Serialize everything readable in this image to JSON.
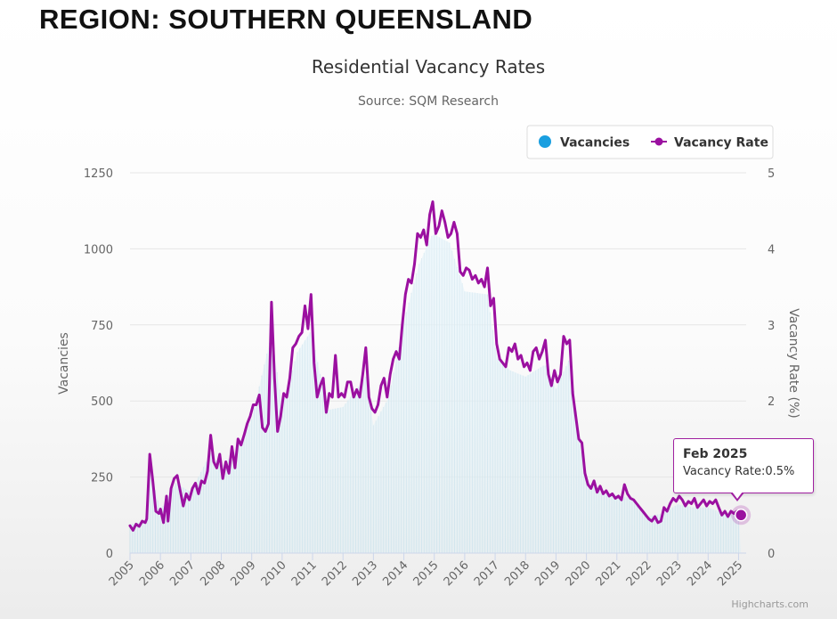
{
  "page": {
    "heading": "REGION: SOUTHERN QUEENSLAND",
    "credit": "Highcharts.com"
  },
  "tooltip": {
    "title": "Feb 2025",
    "label": "Vacancy Rate:",
    "value": "0.5%"
  },
  "colors": {
    "vacancies": "#1a9fe0",
    "vacancy_rate": "#9b10a0",
    "grid": "#e6e6e6",
    "axis_text": "#666666"
  },
  "chart_data": {
    "type": "line",
    "title": "Residential Vacancy Rates",
    "subtitle": "Source: SQM Research",
    "ylabel_left": "Vacancies",
    "ylabel_right": "Vacancy Rate (%)",
    "ylim_left": [
      0,
      1250
    ],
    "ylim_right": [
      0,
      5
    ],
    "yticks_left": [
      "0",
      "250",
      "500",
      "750",
      "1000",
      "1250"
    ],
    "yticks_right": [
      "0",
      "1",
      "2",
      "3",
      "4",
      "5"
    ],
    "x_ticks": [
      "2005",
      "2006",
      "2007",
      "2008",
      "2009",
      "2010",
      "2011",
      "2012",
      "2013",
      "2014",
      "2015",
      "2016",
      "2017",
      "2018",
      "2019",
      "2020",
      "2021",
      "2022",
      "2023",
      "2024",
      "2025"
    ],
    "xlim": [
      2005,
      2025.25
    ],
    "legend": {
      "position": "top-right",
      "entries": [
        {
          "name": "Vacancies",
          "marker": "circle"
        },
        {
          "name": "Vacancy Rate",
          "marker": "line-dot"
        }
      ]
    },
    "grid": true,
    "series": [
      {
        "name": "Vacancy Rate",
        "axis": "right",
        "points": [
          [
            2005.0,
            0.36
          ],
          [
            2005.1,
            0.3
          ],
          [
            2005.2,
            0.38
          ],
          [
            2005.3,
            0.35
          ],
          [
            2005.4,
            0.42
          ],
          [
            2005.5,
            0.4
          ],
          [
            2005.55,
            0.45
          ],
          [
            2005.65,
            1.3
          ],
          [
            2005.75,
            0.95
          ],
          [
            2005.85,
            0.55
          ],
          [
            2005.95,
            0.52
          ],
          [
            2006.0,
            0.58
          ],
          [
            2006.1,
            0.4
          ],
          [
            2006.2,
            0.75
          ],
          [
            2006.25,
            0.42
          ],
          [
            2006.35,
            0.85
          ],
          [
            2006.45,
            0.98
          ],
          [
            2006.55,
            1.02
          ],
          [
            2006.65,
            0.82
          ],
          [
            2006.75,
            0.62
          ],
          [
            2006.85,
            0.78
          ],
          [
            2006.95,
            0.7
          ],
          [
            2007.05,
            0.85
          ],
          [
            2007.15,
            0.92
          ],
          [
            2007.25,
            0.78
          ],
          [
            2007.35,
            0.95
          ],
          [
            2007.45,
            0.92
          ],
          [
            2007.55,
            1.08
          ],
          [
            2007.65,
            1.55
          ],
          [
            2007.75,
            1.2
          ],
          [
            2007.85,
            1.12
          ],
          [
            2007.95,
            1.3
          ],
          [
            2008.05,
            0.98
          ],
          [
            2008.15,
            1.2
          ],
          [
            2008.25,
            1.05
          ],
          [
            2008.35,
            1.4
          ],
          [
            2008.45,
            1.12
          ],
          [
            2008.55,
            1.5
          ],
          [
            2008.65,
            1.42
          ],
          [
            2008.75,
            1.55
          ],
          [
            2008.85,
            1.7
          ],
          [
            2008.95,
            1.8
          ],
          [
            2009.05,
            1.95
          ],
          [
            2009.15,
            1.95
          ],
          [
            2009.25,
            2.08
          ],
          [
            2009.35,
            1.65
          ],
          [
            2009.45,
            1.6
          ],
          [
            2009.55,
            1.7
          ],
          [
            2009.65,
            3.3
          ],
          [
            2009.75,
            2.3
          ],
          [
            2009.85,
            1.6
          ],
          [
            2009.95,
            1.8
          ],
          [
            2010.05,
            2.1
          ],
          [
            2010.15,
            2.05
          ],
          [
            2010.25,
            2.3
          ],
          [
            2010.35,
            2.7
          ],
          [
            2010.45,
            2.75
          ],
          [
            2010.55,
            2.85
          ],
          [
            2010.65,
            2.9
          ],
          [
            2010.75,
            3.25
          ],
          [
            2010.85,
            2.95
          ],
          [
            2010.95,
            3.4
          ],
          [
            2011.05,
            2.5
          ],
          [
            2011.15,
            2.05
          ],
          [
            2011.25,
            2.2
          ],
          [
            2011.35,
            2.3
          ],
          [
            2011.45,
            1.85
          ],
          [
            2011.55,
            2.1
          ],
          [
            2011.65,
            2.05
          ],
          [
            2011.75,
            2.6
          ],
          [
            2011.85,
            2.05
          ],
          [
            2011.95,
            2.1
          ],
          [
            2012.05,
            2.05
          ],
          [
            2012.15,
            2.25
          ],
          [
            2012.25,
            2.25
          ],
          [
            2012.35,
            2.05
          ],
          [
            2012.45,
            2.15
          ],
          [
            2012.55,
            2.05
          ],
          [
            2012.65,
            2.35
          ],
          [
            2012.75,
            2.7
          ],
          [
            2012.85,
            2.05
          ],
          [
            2012.95,
            1.9
          ],
          [
            2013.05,
            1.85
          ],
          [
            2013.15,
            1.95
          ],
          [
            2013.25,
            2.2
          ],
          [
            2013.35,
            2.3
          ],
          [
            2013.45,
            2.05
          ],
          [
            2013.55,
            2.35
          ],
          [
            2013.65,
            2.55
          ],
          [
            2013.75,
            2.65
          ],
          [
            2013.85,
            2.55
          ],
          [
            2013.95,
            3.0
          ],
          [
            2014.05,
            3.4
          ],
          [
            2014.15,
            3.6
          ],
          [
            2014.25,
            3.55
          ],
          [
            2014.35,
            3.8
          ],
          [
            2014.45,
            4.2
          ],
          [
            2014.55,
            4.15
          ],
          [
            2014.65,
            4.25
          ],
          [
            2014.75,
            4.05
          ],
          [
            2014.85,
            4.45
          ],
          [
            2014.95,
            4.62
          ],
          [
            2015.05,
            4.2
          ],
          [
            2015.15,
            4.3
          ],
          [
            2015.25,
            4.5
          ],
          [
            2015.35,
            4.35
          ],
          [
            2015.45,
            4.15
          ],
          [
            2015.55,
            4.2
          ],
          [
            2015.65,
            4.35
          ],
          [
            2015.75,
            4.2
          ],
          [
            2015.85,
            3.7
          ],
          [
            2015.95,
            3.65
          ],
          [
            2016.05,
            3.75
          ],
          [
            2016.15,
            3.72
          ],
          [
            2016.25,
            3.6
          ],
          [
            2016.35,
            3.65
          ],
          [
            2016.45,
            3.55
          ],
          [
            2016.55,
            3.6
          ],
          [
            2016.65,
            3.5
          ],
          [
            2016.75,
            3.75
          ],
          [
            2016.85,
            3.25
          ],
          [
            2016.95,
            3.35
          ],
          [
            2017.05,
            2.75
          ],
          [
            2017.15,
            2.55
          ],
          [
            2017.25,
            2.5
          ],
          [
            2017.35,
            2.45
          ],
          [
            2017.45,
            2.7
          ],
          [
            2017.55,
            2.65
          ],
          [
            2017.65,
            2.75
          ],
          [
            2017.75,
            2.55
          ],
          [
            2017.85,
            2.6
          ],
          [
            2017.95,
            2.45
          ],
          [
            2018.05,
            2.5
          ],
          [
            2018.15,
            2.4
          ],
          [
            2018.25,
            2.65
          ],
          [
            2018.35,
            2.7
          ],
          [
            2018.45,
            2.55
          ],
          [
            2018.55,
            2.65
          ],
          [
            2018.65,
            2.8
          ],
          [
            2018.75,
            2.35
          ],
          [
            2018.85,
            2.2
          ],
          [
            2018.95,
            2.4
          ],
          [
            2019.05,
            2.25
          ],
          [
            2019.15,
            2.35
          ],
          [
            2019.25,
            2.85
          ],
          [
            2019.35,
            2.75
          ],
          [
            2019.45,
            2.8
          ],
          [
            2019.55,
            2.1
          ],
          [
            2019.65,
            1.8
          ],
          [
            2019.75,
            1.5
          ],
          [
            2019.85,
            1.45
          ],
          [
            2019.95,
            1.05
          ],
          [
            2020.05,
            0.9
          ],
          [
            2020.15,
            0.85
          ],
          [
            2020.25,
            0.95
          ],
          [
            2020.35,
            0.8
          ],
          [
            2020.45,
            0.88
          ],
          [
            2020.55,
            0.78
          ],
          [
            2020.65,
            0.82
          ],
          [
            2020.75,
            0.75
          ],
          [
            2020.85,
            0.78
          ],
          [
            2020.95,
            0.72
          ],
          [
            2021.05,
            0.75
          ],
          [
            2021.15,
            0.7
          ],
          [
            2021.25,
            0.9
          ],
          [
            2021.35,
            0.78
          ],
          [
            2021.45,
            0.72
          ],
          [
            2021.55,
            0.7
          ],
          [
            2021.65,
            0.65
          ],
          [
            2021.75,
            0.6
          ],
          [
            2021.85,
            0.55
          ],
          [
            2021.95,
            0.5
          ],
          [
            2022.05,
            0.45
          ],
          [
            2022.15,
            0.42
          ],
          [
            2022.25,
            0.48
          ],
          [
            2022.35,
            0.4
          ],
          [
            2022.45,
            0.42
          ],
          [
            2022.55,
            0.6
          ],
          [
            2022.65,
            0.55
          ],
          [
            2022.75,
            0.65
          ],
          [
            2022.85,
            0.72
          ],
          [
            2022.95,
            0.68
          ],
          [
            2023.05,
            0.75
          ],
          [
            2023.15,
            0.7
          ],
          [
            2023.25,
            0.62
          ],
          [
            2023.35,
            0.68
          ],
          [
            2023.45,
            0.65
          ],
          [
            2023.55,
            0.72
          ],
          [
            2023.65,
            0.6
          ],
          [
            2023.75,
            0.65
          ],
          [
            2023.85,
            0.7
          ],
          [
            2023.95,
            0.62
          ],
          [
            2024.05,
            0.68
          ],
          [
            2024.15,
            0.65
          ],
          [
            2024.25,
            0.7
          ],
          [
            2024.35,
            0.6
          ],
          [
            2024.45,
            0.5
          ],
          [
            2024.55,
            0.55
          ],
          [
            2024.65,
            0.48
          ],
          [
            2024.75,
            0.55
          ],
          [
            2024.85,
            0.52
          ],
          [
            2024.95,
            0.55
          ],
          [
            2025.08,
            0.53
          ]
        ]
      },
      {
        "name": "Vacancies",
        "axis": "left",
        "note_values_follow_rate_shape": true,
        "points": [
          [
            2005.0,
            95
          ],
          [
            2005.5,
            105
          ],
          [
            2005.65,
            280
          ],
          [
            2006.0,
            140
          ],
          [
            2006.5,
            230
          ],
          [
            2007.0,
            200
          ],
          [
            2007.65,
            330
          ],
          [
            2008.0,
            280
          ],
          [
            2008.5,
            340
          ],
          [
            2009.0,
            440
          ],
          [
            2009.65,
            720
          ],
          [
            2010.0,
            480
          ],
          [
            2010.5,
            660
          ],
          [
            2010.95,
            730
          ],
          [
            2011.5,
            470
          ],
          [
            2012.0,
            480
          ],
          [
            2012.75,
            580
          ],
          [
            2013.0,
            420
          ],
          [
            2013.5,
            510
          ],
          [
            2014.0,
            760
          ],
          [
            2014.5,
            950
          ],
          [
            2014.95,
            1050
          ],
          [
            2015.5,
            1020
          ],
          [
            2016.0,
            860
          ],
          [
            2016.75,
            850
          ],
          [
            2017.05,
            640
          ],
          [
            2017.5,
            600
          ],
          [
            2018.0,
            580
          ],
          [
            2018.65,
            620
          ],
          [
            2019.0,
            540
          ],
          [
            2019.45,
            640
          ],
          [
            2019.95,
            240
          ],
          [
            2020.5,
            200
          ],
          [
            2021.0,
            190
          ],
          [
            2021.5,
            180
          ],
          [
            2022.0,
            120
          ],
          [
            2022.5,
            130
          ],
          [
            2023.0,
            160
          ],
          [
            2023.5,
            150
          ],
          [
            2024.0,
            150
          ],
          [
            2024.5,
            130
          ],
          [
            2025.08,
            125
          ]
        ]
      }
    ],
    "highlight": {
      "x": 2025.08,
      "label": "Feb 2025",
      "vacancy_rate": 0.5
    }
  }
}
